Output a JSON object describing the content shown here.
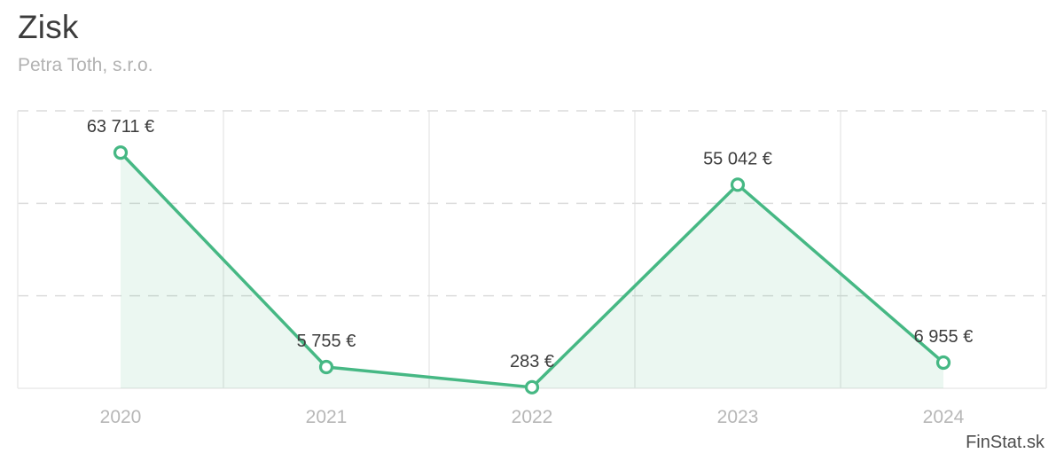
{
  "header": {
    "title": "Zisk",
    "subtitle": "Petra Toth, s.r.o."
  },
  "footer": {
    "brand": "FinStat.sk"
  },
  "chart_data": {
    "type": "line",
    "title": "Zisk",
    "subtitle": "Petra Toth, s.r.o.",
    "categories": [
      "2020",
      "2021",
      "2022",
      "2023",
      "2024"
    ],
    "series": [
      {
        "name": "Zisk",
        "values": [
          63711,
          5755,
          283,
          55042,
          6955
        ]
      }
    ],
    "point_labels": [
      "63 711 €",
      "5 755 €",
      "283 €",
      "55 042 €",
      "6 955 €"
    ],
    "currency": "€",
    "ylim": [
      0,
      75000
    ],
    "grid_step": 25000,
    "grid": true,
    "legend_position": "none",
    "y_tick_labels_visible": false,
    "colors": {
      "line": "#46b884",
      "marker_fill": "#ffffff",
      "area": "rgba(70,184,132,0.11)",
      "grid_dashed": "#dcdcdc",
      "grid_solid": "#eaeaea",
      "value_label": "#3d3d3d",
      "axis_label": "#b7b7b7",
      "title": "#3c3c3c",
      "subtitle": "#b2b2b2",
      "brand_text": "#4c4c4c"
    }
  }
}
